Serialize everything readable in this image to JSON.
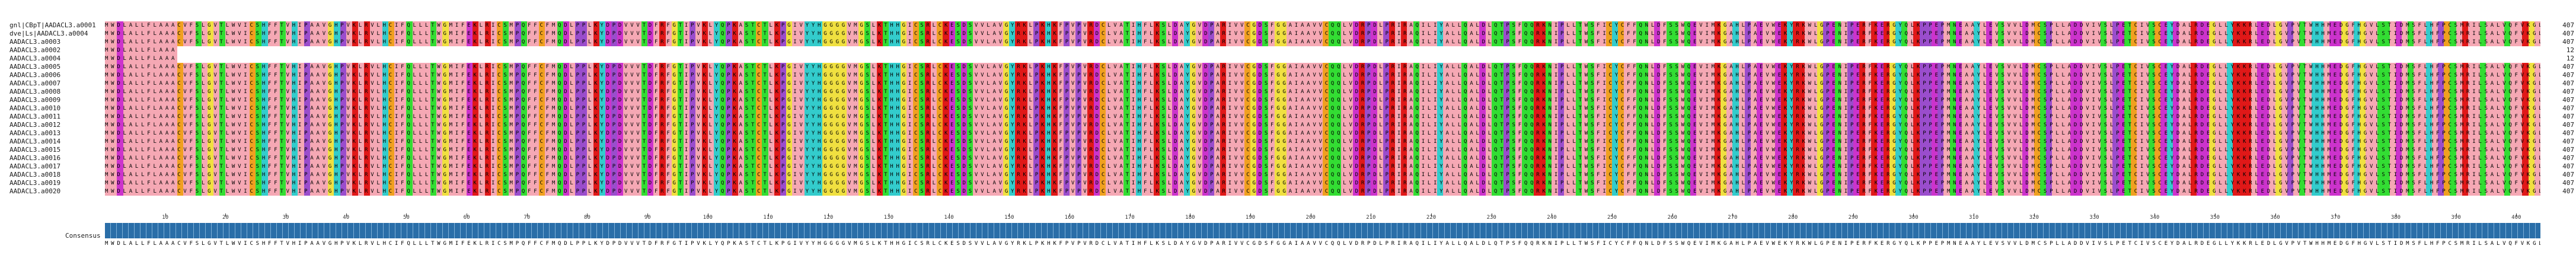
{
  "sequences": [
    {
      "name": "gnl|CBpT|AADACL3.a0001",
      "count": "407"
    },
    {
      "name": "dve|Ls|AADACL3.a0004",
      "count": "407"
    },
    {
      "name": "AADACL3.a0003",
      "count": "407"
    },
    {
      "name": "AADACL3.a0002",
      "count": "12"
    },
    {
      "name": "AADACL3.a0004",
      "count": "12"
    },
    {
      "name": "AADACL3.a0005",
      "count": "407"
    },
    {
      "name": "AADACL3.a0006",
      "count": "407"
    },
    {
      "name": "AADACL3.a0007",
      "count": "407"
    },
    {
      "name": "AADACL3.a0008",
      "count": "407"
    },
    {
      "name": "AADACL3.a0009",
      "count": "407"
    },
    {
      "name": "AADACL3.a0010",
      "count": "407"
    },
    {
      "name": "AADACL3.a0011",
      "count": "407"
    },
    {
      "name": "AADACL3.a0012",
      "count": "407"
    },
    {
      "name": "AADACL3.a0013",
      "count": "407"
    },
    {
      "name": "AADACL3.a0014",
      "count": "407"
    },
    {
      "name": "AADACL3.a0015",
      "count": "407"
    },
    {
      "name": "AADACL3.a0016",
      "count": "407"
    },
    {
      "name": "AADACL3.a0017",
      "count": "407"
    },
    {
      "name": "AADACL3.a0018",
      "count": "407"
    },
    {
      "name": "AADACL3.a0019",
      "count": "407"
    },
    {
      "name": "AADACL3.a0020",
      "count": "407"
    }
  ],
  "sequence_text": "MWDLALLFLAAACVFSLGVTLWVICSHFFTVHIPAAVGHPVKLRVLHCIFQLLLTWGMIFEKLRICSMPQFFCFMQDLPPLKYDPDVVVTDFRFGTIPVKLYQPKASTCTLKPGIVYYHGGGGVMGSLKTHHGICSRLCKESDSVVLAVGYRKLPKHKFPVPVRDCLVATIHFLKSLDAYGVDPARIVVCGDSFGGAIAAVVCQQLVDRPDLPRIRAQILIYALLQALDLQTPSFQQRKNIPLLTWSFICYCFFQNLDFSSWQEVIMKGAHLPAEVWEKYRKWLGPENIPERFKERGYQLKPPEPMNEAAYLEVSVVLDMCSPLLADDVIVSLPETCIVSCEYDALRDEGLLYKKRLEDLGVPVTWHHMEDGFHGVLSTIDMSFLHFPCSMRILSALVQFVKGL",
  "consensus": {
    "label": "Consensus",
    "ruler": [
      "10",
      "20",
      "30",
      "40",
      "50",
      "60",
      "70",
      "80",
      "90",
      "100",
      "110",
      "120",
      "130",
      "140",
      "150",
      "160",
      "170",
      "180",
      "190",
      "200",
      "210",
      "220",
      "230",
      "240",
      "250",
      "260",
      "270",
      "280",
      "290",
      "300",
      "310",
      "320",
      "330",
      "340",
      "350",
      "360",
      "370",
      "380",
      "390",
      "400"
    ]
  },
  "colors": {
    "hydrophobic_pink": "#f5a8b4",
    "red": "#e01818",
    "magenta": "#cc33cc",
    "blue": "#5a78f0",
    "green": "#33dd33",
    "orange": "#f0a020",
    "yellow": "#f0e040",
    "cyan": "#33cccc",
    "purple": "#9a4dcc",
    "conservation_bar": "#2a6ea8"
  }
}
